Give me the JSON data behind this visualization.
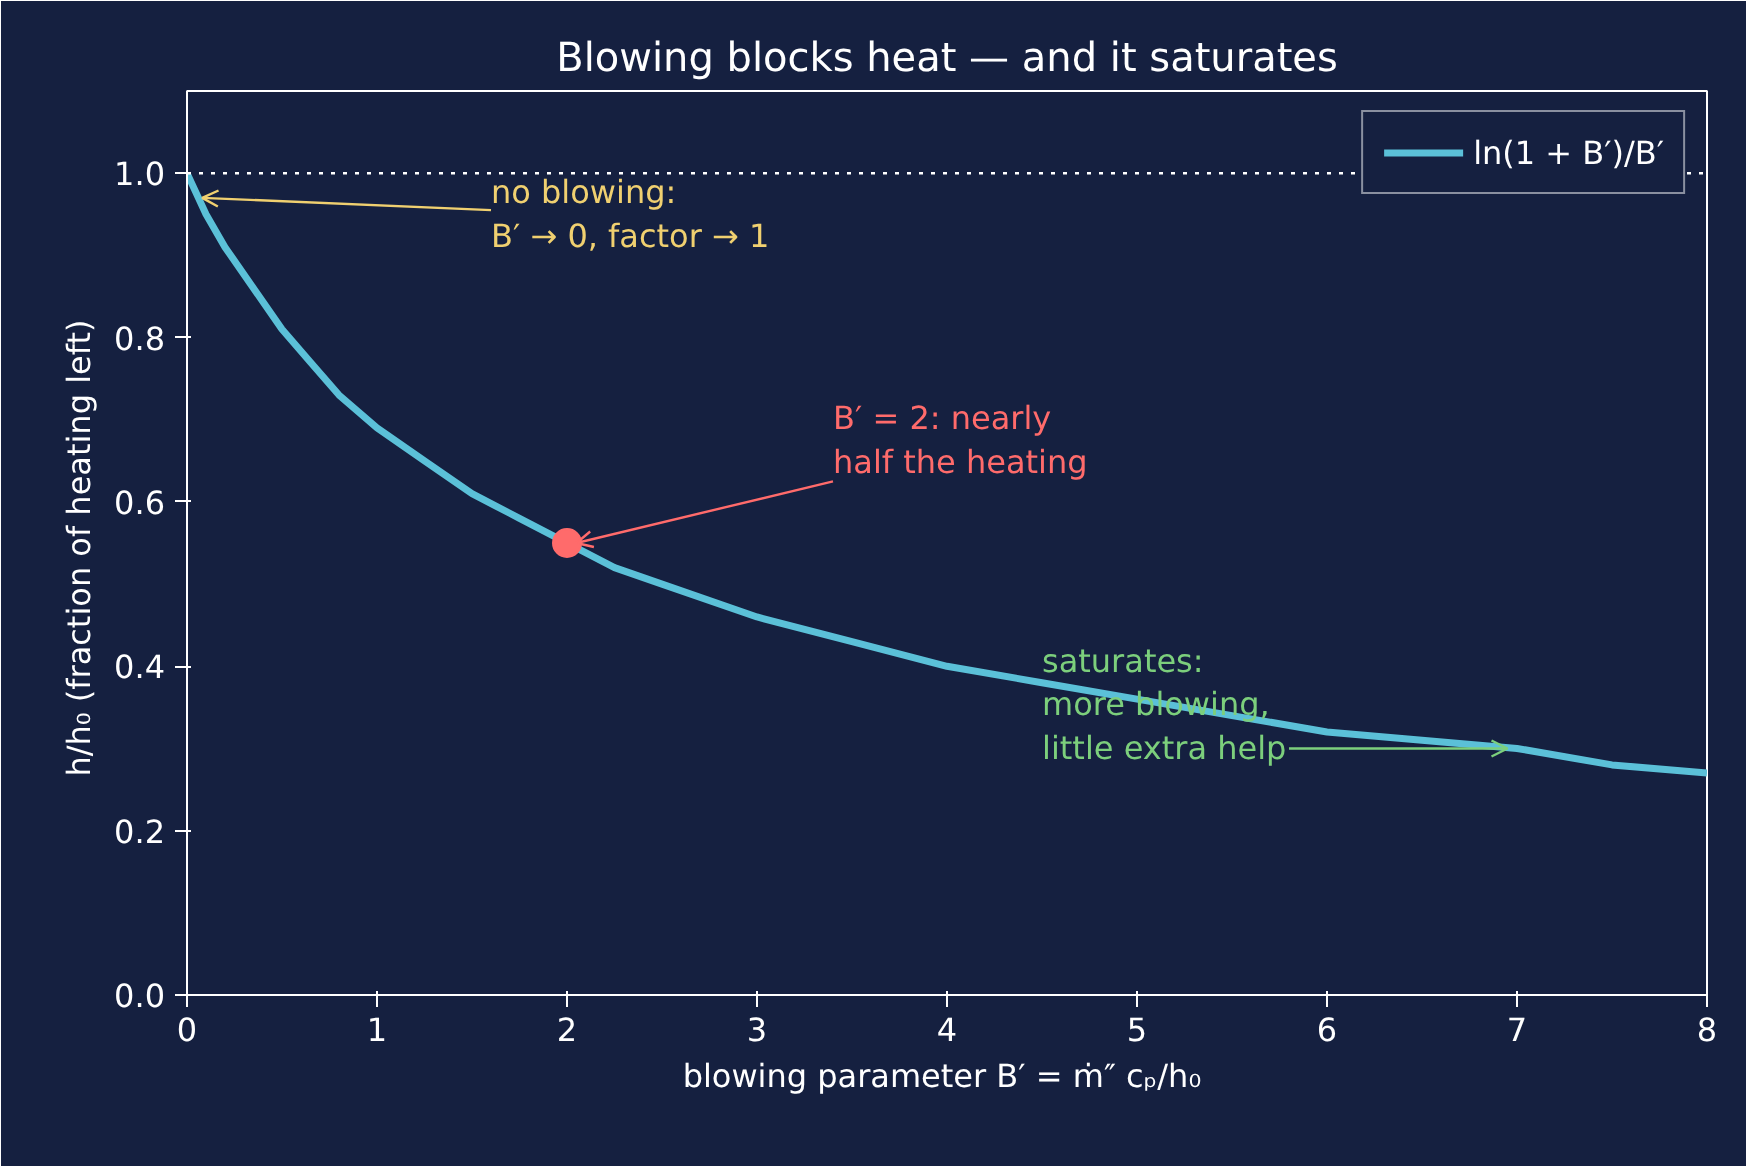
{
  "chart_data": {
    "type": "line",
    "title": "Blowing blocks heat — and it saturates",
    "xlabel": "blowing parameter  B′ = ṁ″ cₚ/h₀",
    "ylabel": "h/h₀  (fraction of heating left)",
    "series": [
      {
        "name": "ln(1 + B′)/B′",
        "color": "#5bc0d8",
        "x": [
          0,
          0.1,
          0.2,
          0.35,
          0.5,
          0.65,
          0.8,
          1,
          1.25,
          1.5,
          1.75,
          2.25,
          2.5,
          3,
          3.5,
          4,
          4.5,
          5,
          5.5,
          6,
          6.5,
          7,
          7.5,
          8
        ],
        "values": [
          1.0,
          0.95,
          0.91,
          0.86,
          0.81,
          0.77,
          0.73,
          0.69,
          0.65,
          0.61,
          0.58,
          0.52,
          0.5,
          0.46,
          0.43,
          0.4,
          0.38,
          0.36,
          0.34,
          0.32,
          0.31,
          0.3,
          0.28,
          0.27
        ]
      },
      {
        "type": "scatter",
        "color": "#ff6b6b",
        "marker": "circle",
        "x": [
          2
        ],
        "values": [
          0.55
        ]
      }
    ],
    "annotations": [
      {
        "text": "no blowing:\nB′ → 0, factor → 1",
        "x": 0.08,
        "y": 0.97
      },
      {
        "text": "B′ = 2: nearly\nhalf the heating",
        "x": 2.05,
        "y": 0.55
      },
      {
        "text": "saturates:\nmore blowing,\nlittle extra help",
        "x": 6.95,
        "y": 0.3
      }
    ],
    "ref_lines": [
      {
        "axis": "y",
        "value": 1.0,
        "color": "#ffffff",
        "line_style": "dotted"
      }
    ],
    "xlim": [
      0,
      8
    ],
    "ylim": [
      0,
      1.1
    ],
    "xticks": [
      0,
      1,
      2,
      3,
      4,
      5,
      6,
      7,
      8
    ],
    "yticks": [
      {
        "value": 0,
        "label": "0.0"
      },
      0.2,
      0.4,
      0.6,
      0.8,
      {
        "value": 1,
        "label": "1.0"
      }
    ],
    "grid": false,
    "legend": "top right"
  }
}
